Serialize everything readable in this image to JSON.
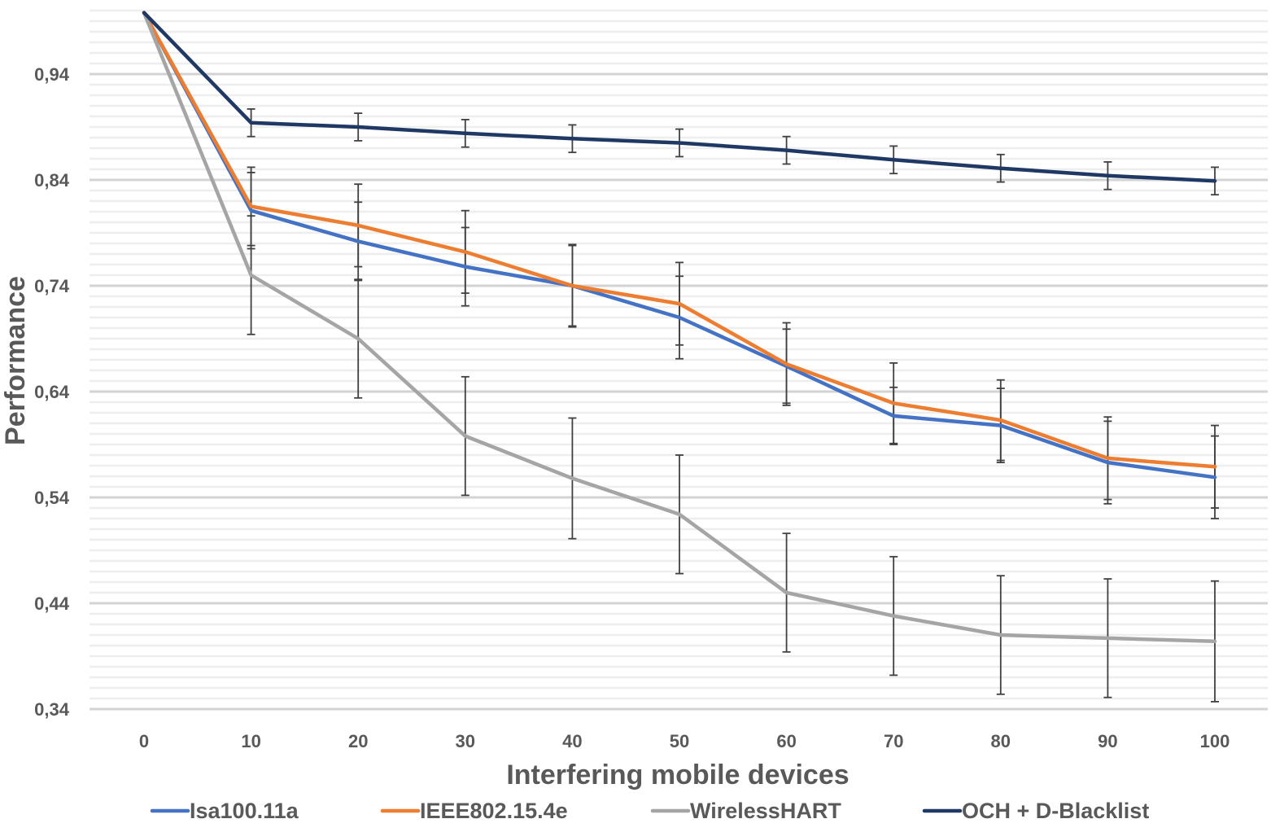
{
  "chart_data": {
    "type": "line",
    "xlabel": "Interfering mobile devices",
    "ylabel": "Performance",
    "x": [
      0,
      10,
      20,
      30,
      40,
      50,
      60,
      70,
      80,
      90,
      100
    ],
    "x_tick_labels": [
      "0",
      "10",
      "20",
      "30",
      "40",
      "50",
      "60",
      "70",
      "80",
      "90",
      "100"
    ],
    "ylim": [
      0.34,
      1.0
    ],
    "y_ticks": [
      0.34,
      0.44,
      0.54,
      0.64,
      0.74,
      0.84,
      0.94
    ],
    "y_tick_labels": [
      "0,34",
      "0,44",
      "0,54",
      "0,64",
      "0,74",
      "0,84",
      "0,94"
    ],
    "minor_gridlines": true,
    "legend_position": "bottom",
    "series": [
      {
        "name": "Isa100.11a",
        "color": "#4472C4",
        "values": [
          0.998,
          0.811,
          0.782,
          0.758,
          0.74,
          0.71,
          0.664,
          0.617,
          0.608,
          0.573,
          0.559
        ],
        "error": [
          0,
          0.036,
          0.037,
          0.037,
          0.038,
          0.039,
          0.035,
          0.027,
          0.035,
          0.039,
          0.039
        ]
      },
      {
        "name": "IEEE802.15.4e",
        "color": "#ED7D31",
        "values": [
          0.998,
          0.815,
          0.797,
          0.772,
          0.74,
          0.723,
          0.666,
          0.629,
          0.613,
          0.577,
          0.569
        ],
        "error": [
          0,
          0.037,
          0.039,
          0.039,
          0.039,
          0.039,
          0.039,
          0.038,
          0.038,
          0.039,
          0.039
        ]
      },
      {
        "name": "WirelessHART",
        "color": "#A5A5A5",
        "values": [
          0.998,
          0.75,
          0.69,
          0.598,
          0.558,
          0.524,
          0.45,
          0.428,
          0.41,
          0.407,
          0.404
        ],
        "error": [
          0,
          0.056,
          0.056,
          0.056,
          0.057,
          0.056,
          0.056,
          0.056,
          0.056,
          0.056,
          0.057
        ]
      },
      {
        "name": "OCH + D-Blacklist",
        "color": "#203864",
        "values": [
          0.998,
          0.894,
          0.89,
          0.884,
          0.879,
          0.875,
          0.868,
          0.859,
          0.851,
          0.844,
          0.839
        ],
        "error": [
          0,
          0.013,
          0.013,
          0.013,
          0.013,
          0.013,
          0.013,
          0.013,
          0.013,
          0.013,
          0.013
        ]
      }
    ]
  }
}
